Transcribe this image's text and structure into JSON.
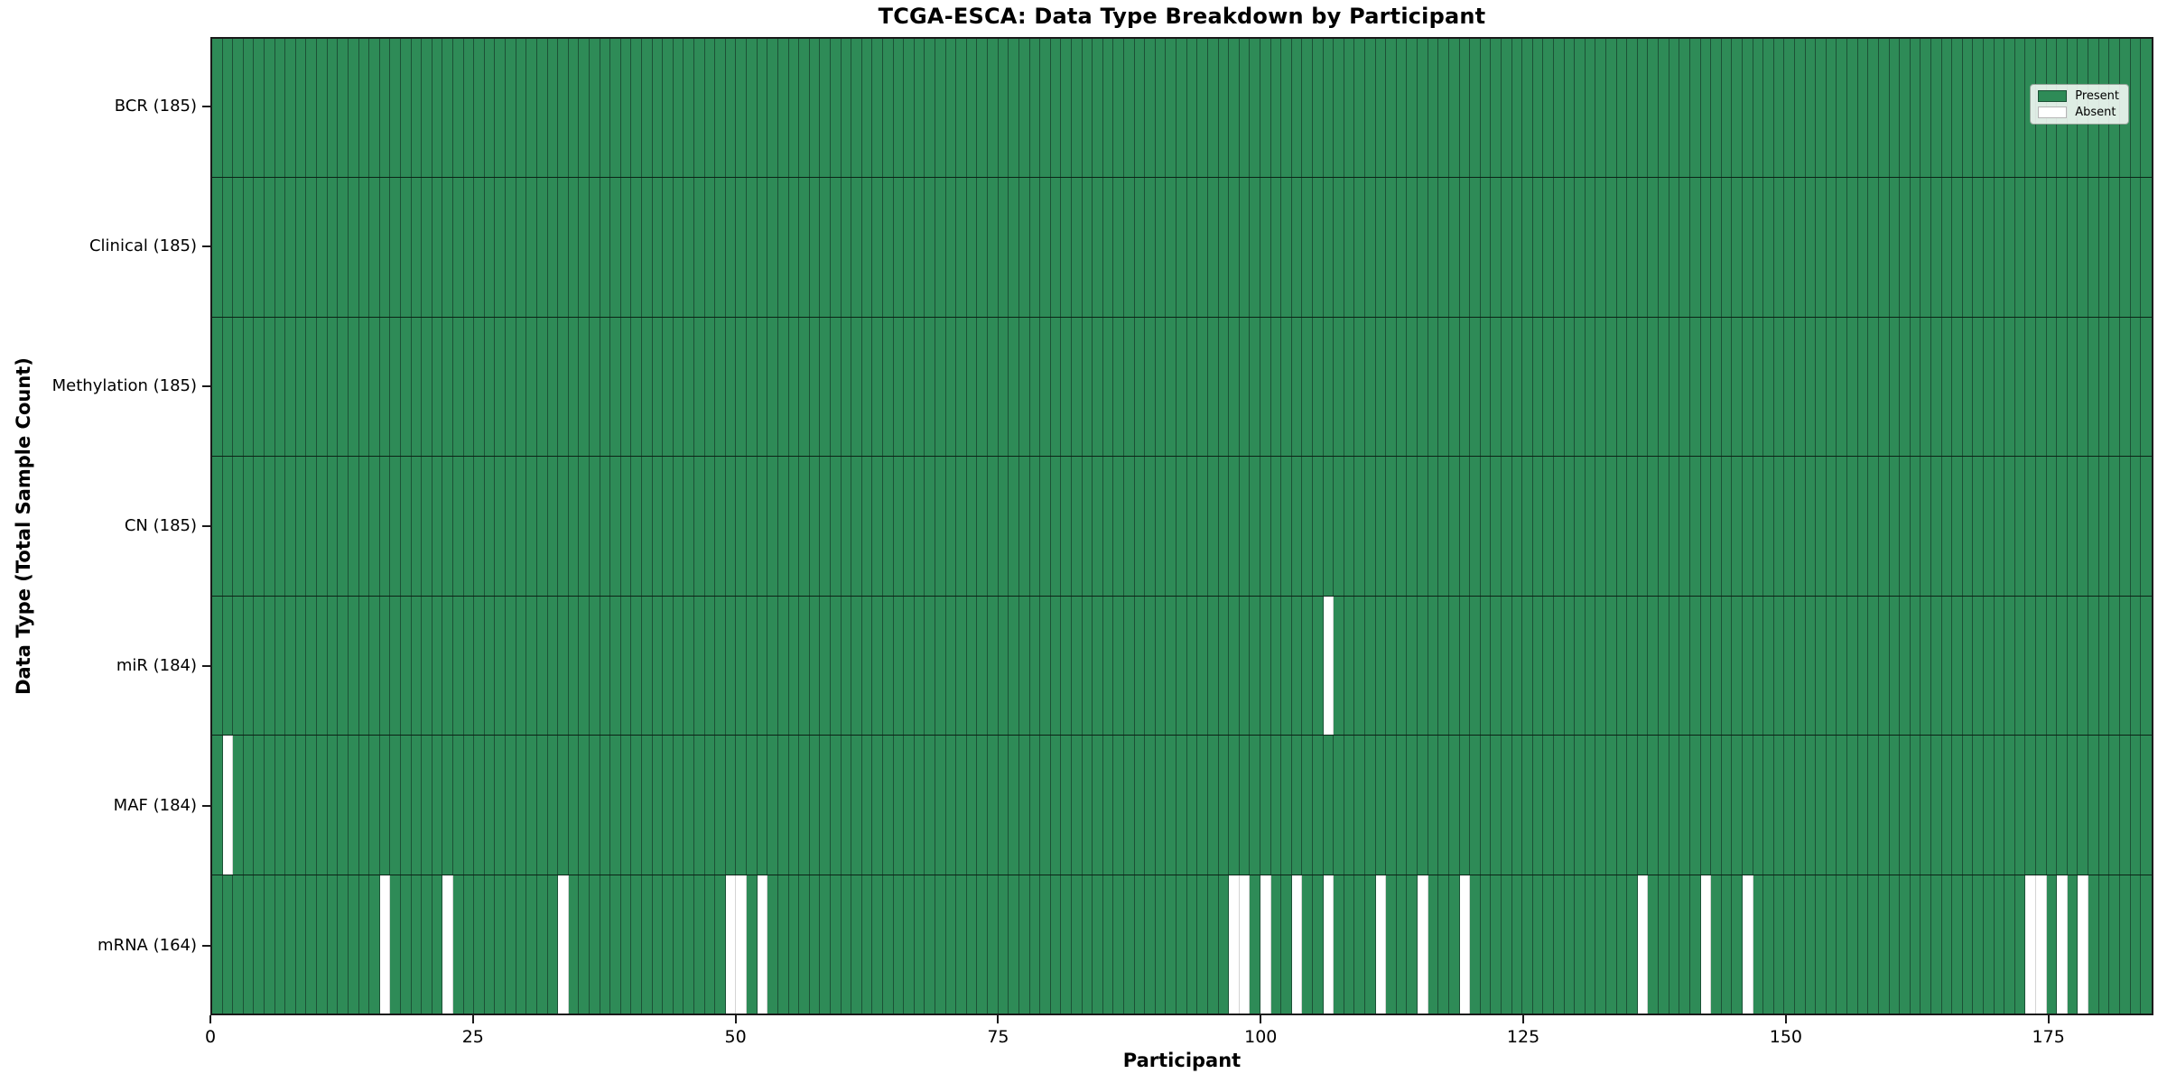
{
  "chart_data": {
    "type": "heatmap",
    "title": "TCGA-ESCA: Data Type Breakdown by Participant",
    "xlabel": "Participant",
    "ylabel": "Data Type (Total Sample Count)",
    "x_ticks": [
      0,
      25,
      50,
      75,
      100,
      125,
      150,
      175
    ],
    "x_range": [
      0,
      185
    ],
    "n_participants": 185,
    "grid": "per-cell vertical edges",
    "legend": {
      "position": "upper-right",
      "entries": [
        {
          "label": "Present",
          "state": "present",
          "color": "#2e8b57"
        },
        {
          "label": "Absent",
          "state": "absent",
          "color": "#ffffff"
        }
      ]
    },
    "colors": {
      "present": "#2e8b57",
      "absent": "#ffffff",
      "present_cell_edge": "#1c5136",
      "absent_cell_edge": "#d4d4d4"
    },
    "rows": [
      {
        "name": "BCR",
        "label": "BCR (185)",
        "present_count": 185,
        "absent_participants": []
      },
      {
        "name": "Clinical",
        "label": "Clinical (185)",
        "present_count": 185,
        "absent_participants": []
      },
      {
        "name": "Methylation",
        "label": "Methylation (185)",
        "present_count": 185,
        "absent_participants": []
      },
      {
        "name": "CN",
        "label": "CN (185)",
        "present_count": 185,
        "absent_participants": []
      },
      {
        "name": "miR",
        "label": "miR (184)",
        "present_count": 184,
        "absent_participants": [
          106
        ]
      },
      {
        "name": "MAF",
        "label": "MAF (184)",
        "present_count": 184,
        "absent_participants": [
          1
        ]
      },
      {
        "name": "mRNA",
        "label": "mRNA (164)",
        "present_count": 164,
        "absent_participants": [
          16,
          22,
          33,
          49,
          50,
          52,
          97,
          98,
          100,
          103,
          106,
          111,
          115,
          119,
          136,
          142,
          146,
          173,
          174,
          176,
          178
        ]
      }
    ]
  }
}
